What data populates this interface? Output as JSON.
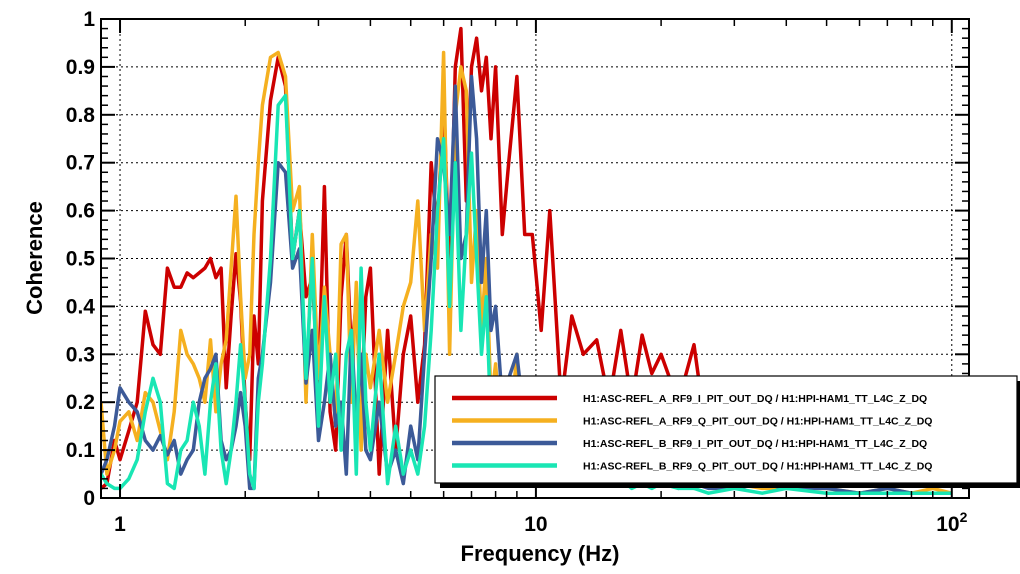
{
  "chart_data": {
    "type": "line",
    "xscale": "log",
    "xlabel": "Frequency (Hz)",
    "ylabel": "Coherence",
    "xlim": [
      0.9,
      110
    ],
    "ylim": [
      0,
      1
    ],
    "xticks": [
      {
        "value": 1,
        "label": "1"
      },
      {
        "value": 10,
        "label": "10"
      },
      {
        "value": 100,
        "label": "10",
        "sup": "2"
      }
    ],
    "yticks": [
      {
        "value": 0,
        "label": "0"
      },
      {
        "value": 0.1,
        "label": "0.1"
      },
      {
        "value": 0.2,
        "label": "0.2"
      },
      {
        "value": 0.3,
        "label": "0.3"
      },
      {
        "value": 0.4,
        "label": "0.4"
      },
      {
        "value": 0.5,
        "label": "0.5"
      },
      {
        "value": 0.6,
        "label": "0.6"
      },
      {
        "value": 0.7,
        "label": "0.7"
      },
      {
        "value": 0.8,
        "label": "0.8"
      },
      {
        "value": 0.9,
        "label": "0.9"
      },
      {
        "value": 1,
        "label": "1"
      }
    ],
    "grid": true,
    "legend_position": "bottom-right",
    "series": [
      {
        "name": "H1:ASC-REFL_A_RF9_I_PIT_OUT_DQ / H1:HPI-HAM1_TT_L4C_Z_DQ",
        "color": "#cc0000",
        "x": [
          0.9,
          0.93,
          0.97,
          1.0,
          1.05,
          1.1,
          1.15,
          1.2,
          1.25,
          1.3,
          1.35,
          1.4,
          1.45,
          1.5,
          1.55,
          1.6,
          1.65,
          1.7,
          1.75,
          1.8,
          1.85,
          1.9,
          1.95,
          2.0,
          2.05,
          2.1,
          2.15,
          2.2,
          2.3,
          2.4,
          2.5,
          2.6,
          2.7,
          2.8,
          2.9,
          3.0,
          3.1,
          3.2,
          3.3,
          3.4,
          3.5,
          3.6,
          3.7,
          3.8,
          3.9,
          4.0,
          4.2,
          4.4,
          4.6,
          4.8,
          5.0,
          5.2,
          5.4,
          5.6,
          5.8,
          6.0,
          6.2,
          6.4,
          6.6,
          6.8,
          7.0,
          7.2,
          7.4,
          7.6,
          7.8,
          8.0,
          8.3,
          8.6,
          9.0,
          9.4,
          9.8,
          10.3,
          10.8,
          11.5,
          12.2,
          13.0,
          14.0,
          15.0,
          16.0,
          17.0,
          18.0,
          19.0,
          20.0,
          22.0,
          24.0,
          26.0,
          30.0,
          35.0,
          40.0,
          50.0,
          60.0,
          70.0,
          80.0,
          90.0,
          100.0
        ],
        "y": [
          0.02,
          0.03,
          0.12,
          0.08,
          0.14,
          0.2,
          0.39,
          0.32,
          0.3,
          0.48,
          0.44,
          0.44,
          0.47,
          0.46,
          0.47,
          0.48,
          0.5,
          0.46,
          0.48,
          0.23,
          0.38,
          0.51,
          0.41,
          0.2,
          0.08,
          0.38,
          0.28,
          0.62,
          0.83,
          0.92,
          0.86,
          0.5,
          0.6,
          0.42,
          0.46,
          0.23,
          0.65,
          0.18,
          0.1,
          0.42,
          0.55,
          0.3,
          0.41,
          0.18,
          0.42,
          0.48,
          0.05,
          0.35,
          0.1,
          0.3,
          0.38,
          0.2,
          0.32,
          0.7,
          0.55,
          0.85,
          0.45,
          0.9,
          0.98,
          0.62,
          0.9,
          0.96,
          0.85,
          0.92,
          0.75,
          0.9,
          0.55,
          0.7,
          0.88,
          0.55,
          0.55,
          0.35,
          0.6,
          0.2,
          0.38,
          0.3,
          0.33,
          0.2,
          0.35,
          0.2,
          0.34,
          0.26,
          0.3,
          0.2,
          0.32,
          0.1,
          0.2,
          0.16,
          0.18,
          0.12,
          0.14,
          0.08,
          0.1,
          0.06,
          0.04
        ]
      },
      {
        "name": "H1:ASC-REFL_A_RF9_Q_PIT_OUT_DQ / H1:HPI-HAM1_TT_L4C_Z_DQ",
        "color": "#f5b020",
        "x": [
          0.9,
          0.93,
          0.97,
          1.0,
          1.05,
          1.1,
          1.15,
          1.2,
          1.25,
          1.3,
          1.35,
          1.4,
          1.45,
          1.5,
          1.55,
          1.6,
          1.65,
          1.7,
          1.75,
          1.8,
          1.85,
          1.9,
          1.95,
          2.0,
          2.05,
          2.1,
          2.15,
          2.2,
          2.3,
          2.4,
          2.5,
          2.6,
          2.7,
          2.8,
          2.9,
          3.0,
          3.1,
          3.2,
          3.3,
          3.4,
          3.5,
          3.6,
          3.7,
          3.8,
          3.9,
          4.0,
          4.2,
          4.4,
          4.6,
          4.8,
          5.0,
          5.2,
          5.4,
          5.6,
          5.8,
          6.0,
          6.2,
          6.4,
          6.6,
          6.8,
          7.0,
          7.2,
          7.4,
          7.6,
          7.8,
          8.0,
          8.3,
          8.6,
          9.0,
          9.4,
          9.8,
          10.3,
          10.8,
          11.5,
          12.2,
          13.0,
          14.0,
          15.0,
          16.0,
          17.0,
          18.0,
          19.0,
          20.0,
          22.0,
          24.0,
          26.0,
          30.0,
          35.0,
          40.0,
          50.0,
          60.0,
          70.0,
          80.0,
          90.0,
          100.0
        ],
        "y": [
          0.2,
          0.05,
          0.1,
          0.16,
          0.18,
          0.12,
          0.22,
          0.2,
          0.14,
          0.08,
          0.18,
          0.35,
          0.3,
          0.28,
          0.25,
          0.2,
          0.33,
          0.18,
          0.28,
          0.33,
          0.48,
          0.63,
          0.42,
          0.25,
          0.3,
          0.55,
          0.7,
          0.82,
          0.92,
          0.93,
          0.88,
          0.6,
          0.65,
          0.2,
          0.55,
          0.25,
          0.44,
          0.3,
          0.15,
          0.53,
          0.55,
          0.2,
          0.45,
          0.1,
          0.3,
          0.23,
          0.35,
          0.2,
          0.3,
          0.4,
          0.45,
          0.62,
          0.35,
          0.55,
          0.48,
          0.93,
          0.3,
          0.8,
          0.9,
          0.85,
          0.45,
          0.6,
          0.35,
          0.5,
          0.2,
          0.28,
          0.1,
          0.12,
          0.3,
          0.08,
          0.12,
          0.1,
          0.05,
          0.08,
          0.05,
          0.04,
          0.06,
          0.05,
          0.04,
          0.03,
          0.04,
          0.05,
          0.03,
          0.04,
          0.02,
          0.04,
          0.03,
          0.02,
          0.02,
          0.02,
          0.01,
          0.02,
          0.01,
          0.02,
          0.01
        ]
      },
      {
        "name": "H1:ASC-REFL_B_RF9_I_PIT_OUT_DQ / H1:HPI-HAM1_TT_L4C_Z_DQ",
        "color": "#3c5a98",
        "x": [
          0.9,
          0.93,
          0.97,
          1.0,
          1.05,
          1.1,
          1.15,
          1.2,
          1.25,
          1.3,
          1.35,
          1.4,
          1.45,
          1.5,
          1.55,
          1.6,
          1.65,
          1.7,
          1.75,
          1.8,
          1.85,
          1.9,
          1.95,
          2.0,
          2.05,
          2.1,
          2.15,
          2.2,
          2.3,
          2.4,
          2.5,
          2.6,
          2.7,
          2.8,
          2.9,
          3.0,
          3.1,
          3.2,
          3.3,
          3.4,
          3.5,
          3.6,
          3.7,
          3.8,
          3.9,
          4.0,
          4.2,
          4.4,
          4.6,
          4.8,
          5.0,
          5.2,
          5.4,
          5.6,
          5.8,
          6.0,
          6.2,
          6.4,
          6.6,
          6.8,
          7.0,
          7.2,
          7.4,
          7.6,
          7.8,
          8.0,
          8.3,
          8.6,
          9.0,
          9.4,
          9.8,
          10.3,
          10.8,
          11.5,
          12.2,
          13.0,
          14.0,
          15.0,
          16.0,
          17.0,
          18.0,
          19.0,
          20.0,
          22.0,
          24.0,
          26.0,
          30.0,
          35.0,
          40.0,
          50.0,
          60.0,
          70.0,
          80.0,
          90.0,
          100.0
        ],
        "y": [
          0.05,
          0.08,
          0.15,
          0.23,
          0.2,
          0.18,
          0.12,
          0.1,
          0.13,
          0.09,
          0.12,
          0.05,
          0.08,
          0.1,
          0.2,
          0.25,
          0.27,
          0.3,
          0.12,
          0.08,
          0.1,
          0.15,
          0.22,
          0.15,
          0.02,
          0.02,
          0.25,
          0.3,
          0.45,
          0.7,
          0.68,
          0.48,
          0.52,
          0.24,
          0.35,
          0.12,
          0.2,
          0.3,
          0.15,
          0.2,
          0.05,
          0.35,
          0.15,
          0.3,
          0.1,
          0.08,
          0.2,
          0.05,
          0.1,
          0.03,
          0.15,
          0.08,
          0.3,
          0.5,
          0.75,
          0.7,
          0.55,
          0.86,
          0.5,
          0.55,
          0.88,
          0.75,
          0.45,
          0.6,
          0.35,
          0.4,
          0.2,
          0.25,
          0.3,
          0.15,
          0.2,
          0.1,
          0.12,
          0.08,
          0.06,
          0.05,
          0.06,
          0.04,
          0.05,
          0.03,
          0.05,
          0.03,
          0.04,
          0.02,
          0.03,
          0.02,
          0.02,
          0.03,
          0.02,
          0.02,
          0.01,
          0.02,
          0.01,
          0.01,
          0.01
        ]
      },
      {
        "name": "H1:ASC-REFL_B_RF9_Q_PIT_OUT_DQ / H1:HPI-HAM1_TT_L4C_Z_DQ",
        "color": "#19e6b4",
        "x": [
          0.9,
          0.93,
          0.97,
          1.0,
          1.05,
          1.1,
          1.15,
          1.2,
          1.25,
          1.3,
          1.35,
          1.4,
          1.45,
          1.5,
          1.55,
          1.6,
          1.65,
          1.7,
          1.75,
          1.8,
          1.85,
          1.9,
          1.95,
          2.0,
          2.05,
          2.1,
          2.15,
          2.2,
          2.3,
          2.4,
          2.5,
          2.6,
          2.7,
          2.8,
          2.9,
          3.0,
          3.1,
          3.2,
          3.3,
          3.4,
          3.5,
          3.6,
          3.7,
          3.8,
          3.9,
          4.0,
          4.2,
          4.4,
          4.6,
          4.8,
          5.0,
          5.2,
          5.4,
          5.6,
          5.8,
          6.0,
          6.2,
          6.4,
          6.6,
          6.8,
          7.0,
          7.2,
          7.4,
          7.6,
          7.8,
          8.0,
          8.3,
          8.6,
          9.0,
          9.4,
          9.8,
          10.3,
          10.8,
          11.5,
          12.2,
          13.0,
          14.0,
          15.0,
          16.0,
          17.0,
          18.0,
          19.0,
          20.0,
          22.0,
          24.0,
          26.0,
          30.0,
          35.0,
          40.0,
          50.0,
          60.0,
          70.0,
          80.0,
          90.0,
          100.0
        ],
        "y": [
          0.05,
          0.03,
          0.02,
          0.02,
          0.04,
          0.08,
          0.18,
          0.25,
          0.2,
          0.03,
          0.02,
          0.1,
          0.12,
          0.2,
          0.15,
          0.05,
          0.2,
          0.28,
          0.1,
          0.03,
          0.1,
          0.2,
          0.32,
          0.2,
          0.05,
          0.02,
          0.2,
          0.28,
          0.5,
          0.82,
          0.84,
          0.5,
          0.6,
          0.25,
          0.5,
          0.15,
          0.42,
          0.2,
          0.3,
          0.1,
          0.3,
          0.35,
          0.05,
          0.48,
          0.2,
          0.1,
          0.3,
          0.03,
          0.15,
          0.05,
          0.1,
          0.05,
          0.15,
          0.35,
          0.6,
          0.75,
          0.4,
          0.7,
          0.35,
          0.55,
          0.72,
          0.5,
          0.3,
          0.42,
          0.15,
          0.25,
          0.1,
          0.12,
          0.15,
          0.08,
          0.1,
          0.06,
          0.08,
          0.05,
          0.04,
          0.03,
          0.05,
          0.03,
          0.04,
          0.02,
          0.03,
          0.02,
          0.03,
          0.02,
          0.02,
          0.01,
          0.02,
          0.01,
          0.02,
          0.01,
          0.01,
          0.01,
          0.01,
          0.01,
          0.01
        ]
      }
    ]
  }
}
